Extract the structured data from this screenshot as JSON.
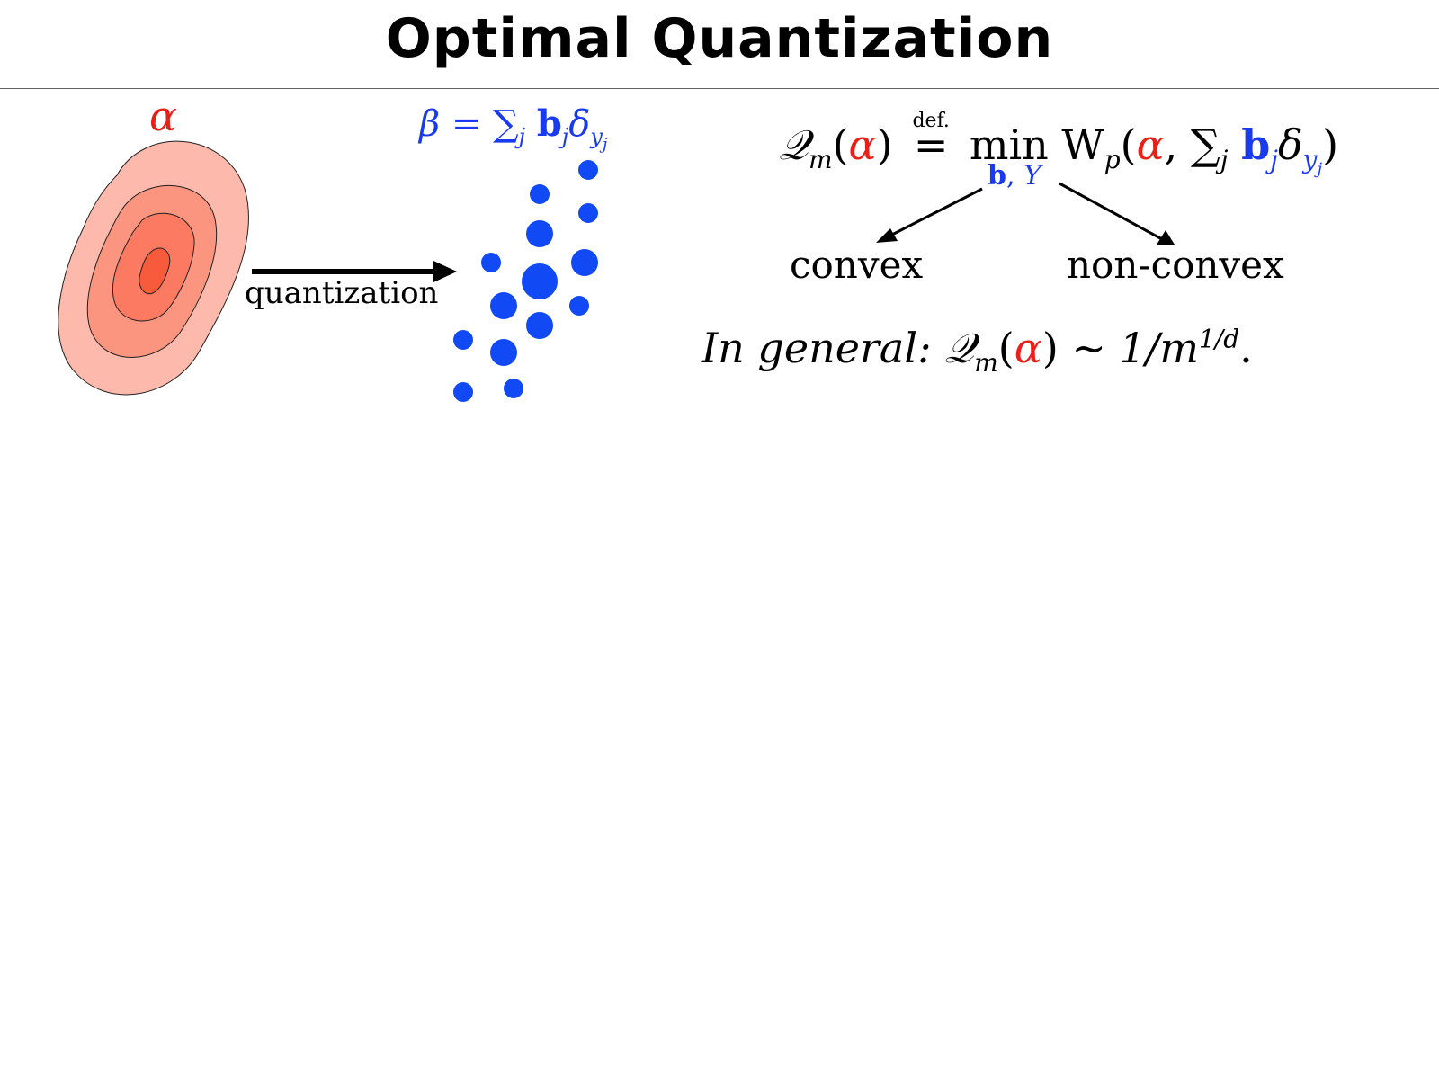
{
  "title": "Optimal Quantization",
  "alpha_label": "α",
  "beta_label": {
    "beta": "β",
    "eq": "=",
    "sum": "∑",
    "sub_j": "j",
    "b": "b",
    "sub_j2": "j",
    "delta": "δ",
    "sub_y": "y",
    "sub_y_j": "j"
  },
  "arrow_label": "quantization",
  "formula": {
    "Q": "𝒬",
    "m": "m",
    "open": "(",
    "alpha": "α",
    "close": ")",
    "def": "def.",
    "eq": "=",
    "min": "min",
    "W": "W",
    "p": "p",
    "open2": "(",
    "alpha2": "α",
    "comma": ",",
    "sum": "∑",
    "j": "j",
    "b": "b",
    "j2": "j",
    "delta": "δ",
    "y": "y",
    "yj": "j",
    "close2": ")"
  },
  "min_sub": {
    "b": "b",
    "comma": ",",
    "Y": "Y"
  },
  "branch_left": "convex",
  "branch_right": "non-convex",
  "general": {
    "prefix": "In general:",
    "Q": "𝒬",
    "m": "m",
    "open": "(",
    "alpha": "α",
    "close": ")",
    "sim": "∼",
    "frac": "1/m",
    "exp": "1/d",
    "end": "."
  },
  "colors": {
    "red": "#e8201a",
    "blue": "#1a3af0",
    "contour_outer": "#fdb9ab",
    "contour_2": "#fc9580",
    "contour_3": "#fb7a61",
    "contour_core": "#f85a3c"
  }
}
